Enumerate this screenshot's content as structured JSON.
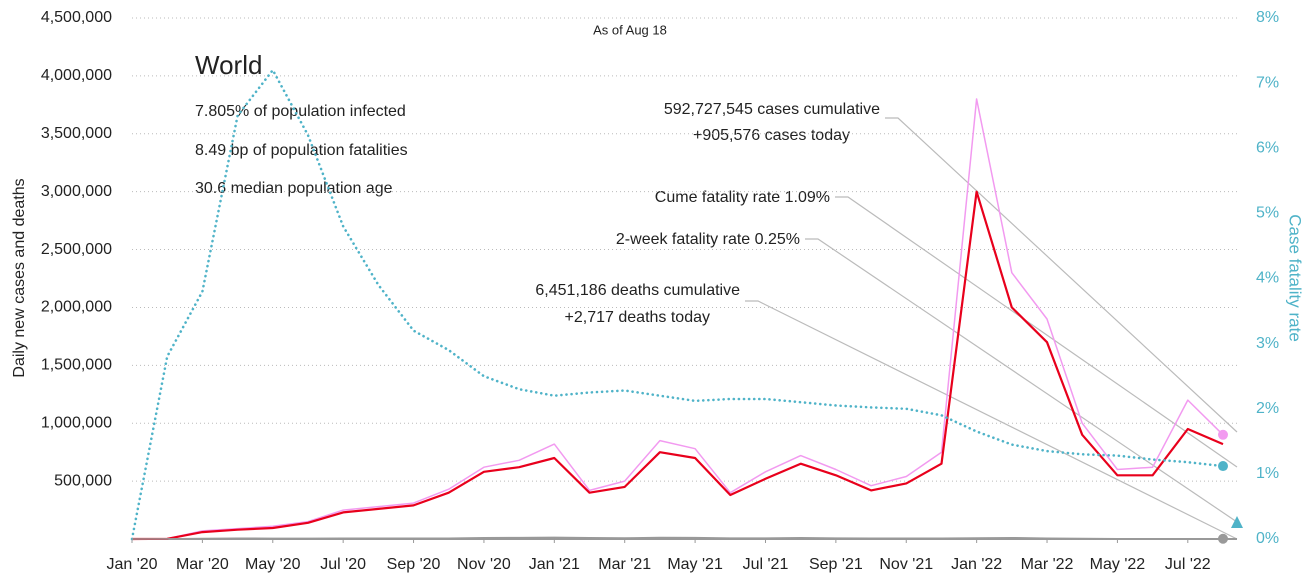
{
  "chart_data": {
    "type": "line",
    "subtitle": "As of Aug 18",
    "y_label": "Daily new cases and deaths",
    "y2_label": "Case fatality rate",
    "heading": "World",
    "stats": [
      "7.805% of population infected",
      "8.49 bp of population fatalities",
      "30.6 median population age"
    ],
    "annotations": [
      "592,727,545 cases cumulative",
      "+905,576 cases today",
      "Cume fatality rate 1.09%",
      "2-week fatality rate 0.25%",
      "6,451,186 deaths cumulative",
      "+2,717 deaths today"
    ],
    "x": [
      "2020-01",
      "2020-02",
      "2020-03",
      "2020-04",
      "2020-05",
      "2020-06",
      "2020-07",
      "2020-08",
      "2020-09",
      "2020-10",
      "2020-11",
      "2020-12",
      "2021-01",
      "2021-02",
      "2021-03",
      "2021-04",
      "2021-05",
      "2021-06",
      "2021-07",
      "2021-08",
      "2021-09",
      "2021-10",
      "2021-11",
      "2021-12",
      "2022-01",
      "2022-02",
      "2022-03",
      "2022-04",
      "2022-05",
      "2022-06",
      "2022-07",
      "2022-08"
    ],
    "xlim": [
      "2020-01",
      "2022-08"
    ],
    "xticks": [
      {
        "value": "2020-01",
        "label": "Jan '20"
      },
      {
        "value": "2020-03",
        "label": "Mar '20"
      },
      {
        "value": "2020-05",
        "label": "May '20"
      },
      {
        "value": "2020-07",
        "label": "Jul '20"
      },
      {
        "value": "2020-09",
        "label": "Sep '20"
      },
      {
        "value": "2020-11",
        "label": "Nov '20"
      },
      {
        "value": "2021-01",
        "label": "Jan '21"
      },
      {
        "value": "2021-03",
        "label": "Mar '21"
      },
      {
        "value": "2021-05",
        "label": "May '21"
      },
      {
        "value": "2021-07",
        "label": "Jul '21"
      },
      {
        "value": "2021-09",
        "label": "Sep '21"
      },
      {
        "value": "2021-11",
        "label": "Nov '21"
      },
      {
        "value": "2022-01",
        "label": "Jan '22"
      },
      {
        "value": "2022-03",
        "label": "Mar '22"
      },
      {
        "value": "2022-05",
        "label": "May '22"
      },
      {
        "value": "2022-07",
        "label": "Jul '22"
      }
    ],
    "ylim": [
      0,
      4500000
    ],
    "yticks": [
      {
        "value": 500000,
        "label": "500,000"
      },
      {
        "value": 1000000,
        "label": "1,000,000"
      },
      {
        "value": 1500000,
        "label": "1,500,000"
      },
      {
        "value": 2000000,
        "label": "2,000,000"
      },
      {
        "value": 2500000,
        "label": "2,500,000"
      },
      {
        "value": 3000000,
        "label": "3,000,000"
      },
      {
        "value": 3500000,
        "label": "3,500,000"
      },
      {
        "value": 4000000,
        "label": "4,000,000"
      },
      {
        "value": 4500000,
        "label": "4,500,000"
      }
    ],
    "y2lim": [
      0,
      8
    ],
    "y2ticks": [
      {
        "value": 0,
        "label": "0%"
      },
      {
        "value": 1,
        "label": "1%"
      },
      {
        "value": 2,
        "label": "2%"
      },
      {
        "value": 3,
        "label": "3%"
      },
      {
        "value": 4,
        "label": "4%"
      },
      {
        "value": 5,
        "label": "5%"
      },
      {
        "value": 6,
        "label": "6%"
      },
      {
        "value": 7,
        "label": "7%"
      },
      {
        "value": 8,
        "label": "8%"
      }
    ],
    "grid": true,
    "series": [
      {
        "color": "#f29af0",
        "width": 1.5,
        "style": "solid",
        "values": [
          0,
          3000,
          70000,
          90000,
          110000,
          150000,
          250000,
          280000,
          310000,
          430000,
          620000,
          680000,
          820000,
          420000,
          500000,
          850000,
          780000,
          400000,
          580000,
          720000,
          600000,
          460000,
          540000,
          750000,
          3800000,
          2300000,
          1900000,
          1000000,
          600000,
          620000,
          1200000,
          900000
        ]
      },
      {
        "color": "#e8001c",
        "width": 2.2,
        "style": "solid",
        "values": [
          0,
          2000,
          60000,
          80000,
          95000,
          140000,
          230000,
          260000,
          290000,
          400000,
          580000,
          620000,
          700000,
          400000,
          450000,
          750000,
          700000,
          380000,
          520000,
          650000,
          550000,
          420000,
          480000,
          650000,
          3000000,
          2000000,
          1700000,
          900000,
          550000,
          550000,
          950000,
          820000
        ]
      },
      {
        "color": "#4fb3c8",
        "width": 2.6,
        "style": "dotted",
        "axis": "y2",
        "values": [
          0,
          2.8,
          3.8,
          6.5,
          7.2,
          6.2,
          4.8,
          3.9,
          3.2,
          2.9,
          2.5,
          2.3,
          2.2,
          2.25,
          2.28,
          2.2,
          2.12,
          2.15,
          2.15,
          2.1,
          2.05,
          2.02,
          2.0,
          1.9,
          1.65,
          1.45,
          1.35,
          1.3,
          1.28,
          1.22,
          1.18,
          1.12
        ]
      },
      {
        "color": "#999999",
        "width": 1.5,
        "style": "solid",
        "values": [
          0,
          500,
          4000,
          7000,
          5000,
          5000,
          6000,
          6000,
          6000,
          7000,
          10000,
          12000,
          14000,
          11000,
          9000,
          13000,
          12000,
          8000,
          8000,
          10000,
          8000,
          7000,
          7000,
          7000,
          9000,
          11000,
          6000,
          4000,
          2000,
          2000,
          2000,
          2000
        ]
      }
    ]
  }
}
